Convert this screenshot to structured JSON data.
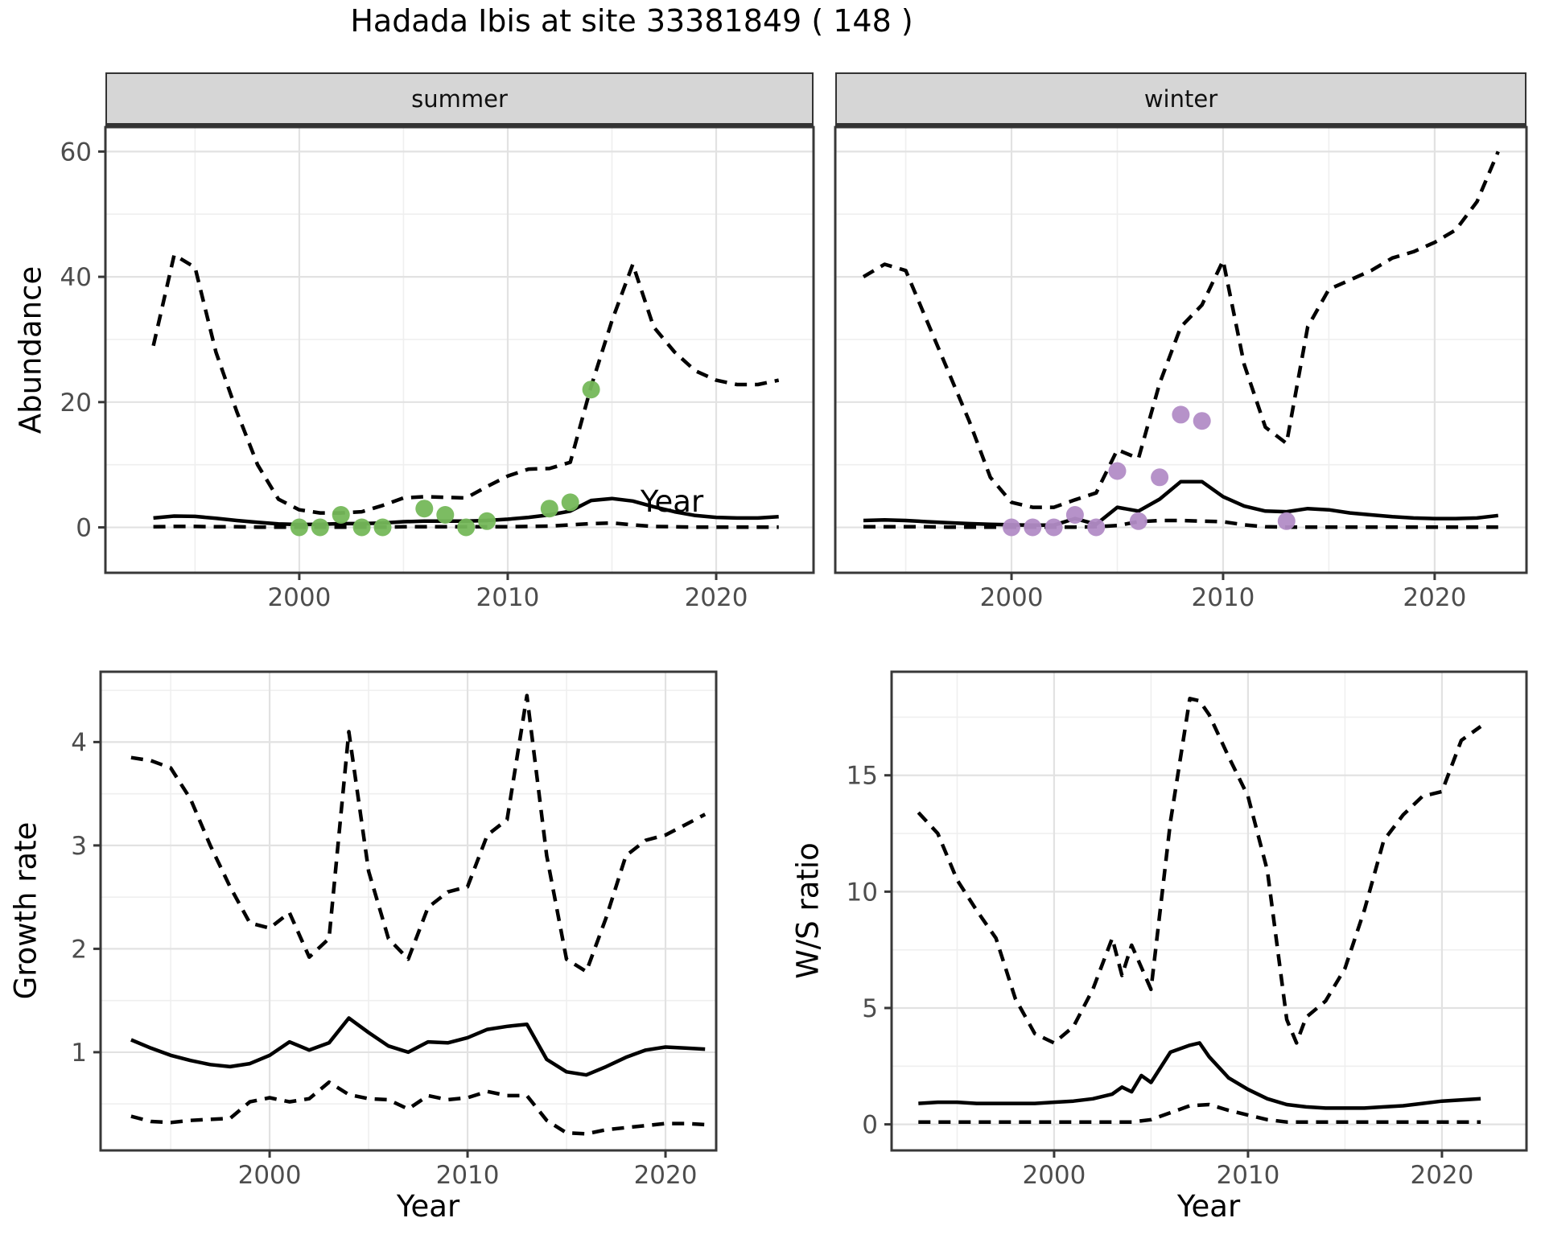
{
  "title": "Hadada Ibis at site 33381849 ( 148 )",
  "colors": {
    "summer_points": "#75b85a",
    "winter_points": "#b28cc6",
    "line": "#000000",
    "grid_major": "#e2e2e2",
    "grid_minor": "#efefef",
    "strip_bg": "#d6d6d6",
    "tick_text": "#4d4d4d",
    "border": "#383838"
  },
  "top_row": {
    "ylabel": "Abundance",
    "xlabel": "Year",
    "strips": [
      "summer",
      "winter"
    ]
  },
  "bottom_row": {
    "left_ylabel": "Growth rate",
    "right_ylabel": "W/S ratio",
    "xlabel": "Year"
  },
  "chart_data": [
    {
      "name": "abundance-summer",
      "type": "line",
      "facet": "summer",
      "xlabel": "Year",
      "ylabel": "Abundance",
      "xlim": [
        1990.7,
        2024.67
      ],
      "ylim": [
        -7.25,
        63.9
      ],
      "x_ticks": {
        "values": [
          2000,
          2010,
          2020
        ],
        "labels": [
          "2000",
          "2010",
          "2020"
        ]
      },
      "y_ticks": {
        "values": [
          0,
          20,
          40,
          60
        ],
        "labels": [
          "0",
          "20",
          "40",
          "60"
        ]
      },
      "x_minor": [
        1995,
        2005,
        2015
      ],
      "y_minor": [
        10,
        30,
        50
      ],
      "series": [
        {
          "name": "upper_ci",
          "style": "dashed",
          "x": [
            1993,
            1994,
            1995,
            1996,
            1997,
            1998,
            1999,
            2000,
            2001,
            2002,
            2003,
            2004,
            2005,
            2006,
            2007,
            2008,
            2009,
            2010,
            2011,
            2012,
            2013,
            2014,
            2015,
            2016,
            2017,
            2018,
            2019,
            2020,
            2021,
            2022,
            2023
          ],
          "v": [
            29,
            43.5,
            41.5,
            28,
            18.5,
            10,
            4.5,
            2.8,
            2.3,
            2.3,
            2.5,
            3.5,
            4.7,
            4.9,
            4.8,
            4.7,
            6.5,
            8.2,
            9.3,
            9.4,
            10.4,
            22.5,
            33,
            42,
            32,
            28,
            25,
            23.5,
            22.8,
            22.8,
            23.5
          ]
        },
        {
          "name": "median",
          "style": "solid",
          "x": [
            1993,
            1994,
            1995,
            1996,
            1997,
            1998,
            1999,
            2000,
            2001,
            2002,
            2003,
            2004,
            2005,
            2006,
            2007,
            2008,
            2009,
            2010,
            2011,
            2012,
            2013,
            2014,
            2015,
            2016,
            2017,
            2018,
            2019,
            2020,
            2021,
            2022,
            2023
          ],
          "v": [
            1.5,
            1.8,
            1.75,
            1.45,
            1.1,
            0.8,
            0.55,
            0.45,
            0.5,
            0.6,
            0.6,
            0.7,
            0.9,
            1.0,
            1.0,
            1.0,
            1.1,
            1.3,
            1.6,
            2.0,
            2.6,
            4.3,
            4.6,
            4.2,
            3.3,
            2.5,
            1.9,
            1.6,
            1.5,
            1.5,
            1.7
          ]
        },
        {
          "name": "lower_ci",
          "style": "dashed",
          "x": [
            1993,
            1994,
            1995,
            1996,
            1997,
            1998,
            1999,
            2000,
            2001,
            2002,
            2003,
            2004,
            2005,
            2006,
            2007,
            2008,
            2009,
            2010,
            2011,
            2012,
            2013,
            2014,
            2015,
            2016,
            2017,
            2018,
            2019,
            2020,
            2021,
            2022,
            2023
          ],
          "v": [
            0.1,
            0.15,
            0.15,
            0.1,
            0.1,
            0.05,
            0.05,
            0.05,
            0.05,
            0.05,
            0.05,
            0.05,
            0.1,
            0.1,
            0.1,
            0.1,
            0.1,
            0.1,
            0.15,
            0.2,
            0.4,
            0.6,
            0.7,
            0.4,
            0.15,
            0.1,
            0.05,
            0.05,
            0.05,
            0.05,
            0.05
          ]
        }
      ],
      "points": {
        "name": "observed-counts",
        "color_key": "summer_points",
        "x": [
          2000,
          2001,
          2002,
          2003,
          2004,
          2006,
          2007,
          2008,
          2009,
          2012,
          2013,
          2014
        ],
        "v": [
          0,
          0,
          2,
          0,
          0,
          3,
          2,
          0,
          1,
          3,
          4,
          22
        ]
      }
    },
    {
      "name": "abundance-winter",
      "type": "line",
      "facet": "winter",
      "xlabel": "Year",
      "ylabel": "Abundance",
      "xlim": [
        1991.67,
        2024.34
      ],
      "ylim": [
        -7.25,
        63.9
      ],
      "x_ticks": {
        "values": [
          2000,
          2010,
          2020
        ],
        "labels": [
          "2000",
          "2010",
          "2020"
        ]
      },
      "y_ticks": {
        "values": [
          0,
          20,
          40,
          60
        ],
        "labels": [
          "0",
          "20",
          "40",
          "60"
        ]
      },
      "x_minor": [
        1995,
        2005,
        2015
      ],
      "y_minor": [
        10,
        30,
        50
      ],
      "series": [
        {
          "name": "upper_ci",
          "style": "dashed",
          "x": [
            1993,
            1994,
            1995,
            1996,
            1997,
            1998,
            1999,
            2000,
            2001,
            2002,
            2003,
            2004,
            2005,
            2006,
            2007,
            2008,
            2009,
            2010,
            2011,
            2012,
            2013,
            2014,
            2015,
            2016,
            2017,
            2018,
            2019,
            2020,
            2021,
            2022,
            2023
          ],
          "v": [
            40,
            42,
            41,
            33,
            25,
            17,
            8,
            4,
            3.2,
            3.2,
            4.4,
            5.5,
            12.4,
            11,
            23,
            32,
            35.5,
            42.6,
            26,
            16,
            13.4,
            32,
            38,
            39.5,
            41,
            43,
            44,
            45.5,
            47.5,
            52,
            60
          ]
        },
        {
          "name": "median",
          "style": "solid",
          "x": [
            1993,
            1994,
            1995,
            1996,
            1997,
            1998,
            1999,
            2000,
            2001,
            2002,
            2003,
            2004,
            2005,
            2006,
            2007,
            2008,
            2009,
            2010,
            2011,
            2012,
            2013,
            2014,
            2015,
            2016,
            2017,
            2018,
            2019,
            2020,
            2021,
            2022,
            2023
          ],
          "v": [
            1.1,
            1.2,
            1.1,
            0.9,
            0.75,
            0.6,
            0.5,
            0.4,
            0.35,
            0.35,
            1.4,
            0.5,
            3.2,
            2.6,
            4.5,
            7.3,
            7.3,
            4.9,
            3.4,
            2.6,
            2.5,
            3.0,
            2.8,
            2.3,
            2.0,
            1.7,
            1.5,
            1.4,
            1.4,
            1.5,
            1.9
          ]
        },
        {
          "name": "lower_ci",
          "style": "dashed",
          "x": [
            1993,
            1994,
            1995,
            1996,
            1997,
            1998,
            1999,
            2000,
            2001,
            2002,
            2003,
            2004,
            2005,
            2006,
            2007,
            2008,
            2009,
            2010,
            2011,
            2012,
            2013,
            2014,
            2015,
            2016,
            2017,
            2018,
            2019,
            2020,
            2021,
            2022,
            2023
          ],
          "v": [
            0.1,
            0.1,
            0.1,
            0.1,
            0.05,
            0.05,
            0.05,
            0.05,
            0.05,
            0.05,
            0.05,
            0.1,
            0.3,
            0.9,
            1.1,
            1.1,
            1.0,
            0.9,
            0.4,
            0.1,
            0.05,
            0.05,
            0.05,
            0.05,
            0.05,
            0.05,
            0.05,
            0.05,
            0.05,
            0.05,
            0.05
          ]
        }
      ],
      "points": {
        "name": "observed-counts",
        "color_key": "winter_points",
        "x": [
          2000,
          2001,
          2002,
          2003,
          2004,
          2005,
          2006,
          2007,
          2008,
          2009,
          2013
        ],
        "v": [
          0,
          0,
          0,
          2,
          0,
          9,
          1,
          8,
          18,
          17,
          1
        ]
      }
    },
    {
      "name": "growth-rate",
      "type": "line",
      "facet": "",
      "xlabel": "Year",
      "ylabel": "Growth rate",
      "xlim": [
        1991.46,
        2022.56
      ],
      "ylim": [
        0.05,
        4.68
      ],
      "x_ticks": {
        "values": [
          2000,
          2010,
          2020
        ],
        "labels": [
          "2000",
          "2010",
          "2020"
        ]
      },
      "y_ticks": {
        "values": [
          1,
          2,
          3,
          4
        ],
        "labels": [
          "1",
          "2",
          "3",
          "4"
        ]
      },
      "x_minor": [
        1995,
        2005,
        2015
      ],
      "y_minor": [
        0.5,
        1.5,
        2.5,
        3.5,
        4.5
      ],
      "series": [
        {
          "name": "upper_ci",
          "style": "dashed",
          "x": [
            1993,
            1994,
            1995,
            1996,
            1997,
            1998,
            1999,
            2000,
            2001,
            2002,
            2003,
            2004,
            2005,
            2006,
            2007,
            2008,
            2009,
            2010,
            2011,
            2012,
            2013,
            2014,
            2015,
            2016,
            2017,
            2018,
            2019,
            2020,
            2021,
            2022
          ],
          "v": [
            3.85,
            3.82,
            3.75,
            3.45,
            3.0,
            2.6,
            2.25,
            2.2,
            2.35,
            1.92,
            2.1,
            4.1,
            2.75,
            2.1,
            1.9,
            2.4,
            2.55,
            2.6,
            3.1,
            3.25,
            4.45,
            2.9,
            1.9,
            1.78,
            2.3,
            2.9,
            3.05,
            3.1,
            3.2,
            3.3
          ]
        },
        {
          "name": "median",
          "style": "solid",
          "x": [
            1993,
            1994,
            1995,
            1996,
            1997,
            1998,
            1999,
            2000,
            2001,
            2002,
            2003,
            2004,
            2005,
            2006,
            2007,
            2008,
            2009,
            2010,
            2011,
            2012,
            2013,
            2014,
            2015,
            2016,
            2017,
            2018,
            2019,
            2020,
            2021,
            2022
          ],
          "v": [
            1.12,
            1.04,
            0.97,
            0.92,
            0.88,
            0.86,
            0.89,
            0.97,
            1.1,
            1.02,
            1.09,
            1.33,
            1.19,
            1.06,
            1.0,
            1.1,
            1.09,
            1.14,
            1.22,
            1.25,
            1.27,
            0.93,
            0.81,
            0.78,
            0.86,
            0.95,
            1.02,
            1.05,
            1.04,
            1.03
          ]
        },
        {
          "name": "lower_ci",
          "style": "dashed",
          "x": [
            1993,
            1994,
            1995,
            1996,
            1997,
            1998,
            1999,
            2000,
            2001,
            2002,
            2003,
            2004,
            2005,
            2006,
            2007,
            2008,
            2009,
            2010,
            2011,
            2012,
            2013,
            2014,
            2015,
            2016,
            2017,
            2018,
            2019,
            2020,
            2021,
            2022
          ],
          "v": [
            0.38,
            0.33,
            0.32,
            0.34,
            0.35,
            0.36,
            0.52,
            0.56,
            0.52,
            0.55,
            0.71,
            0.59,
            0.55,
            0.54,
            0.45,
            0.58,
            0.54,
            0.56,
            0.62,
            0.58,
            0.58,
            0.34,
            0.22,
            0.21,
            0.25,
            0.27,
            0.29,
            0.31,
            0.31,
            0.3
          ]
        }
      ],
      "points": null
    },
    {
      "name": "ws-ratio",
      "type": "line",
      "facet": "",
      "xlabel": "Year",
      "ylabel": "W/S ratio",
      "xlim": [
        1991.62,
        2024.36
      ],
      "ylim": [
        -1.12,
        19.45
      ],
      "x_ticks": {
        "values": [
          2000,
          2010,
          2020
        ],
        "labels": [
          "2000",
          "2010",
          "2020"
        ]
      },
      "y_ticks": {
        "values": [
          0,
          5,
          10,
          15
        ],
        "labels": [
          "0",
          "5",
          "10",
          "15"
        ]
      },
      "x_minor": [
        1995,
        2005,
        2015
      ],
      "y_minor": [
        2.5,
        7.5,
        12.5,
        17.5
      ],
      "series": [
        {
          "name": "upper_ci",
          "style": "dashed",
          "x": [
            1993,
            1994,
            1995,
            1996,
            1997,
            1998,
            1999,
            2000,
            2001,
            2002,
            2003,
            2003.5,
            2004,
            2005,
            2006,
            2007,
            2007.5,
            2008,
            2009,
            2010,
            2011,
            2012,
            2012.5,
            2013,
            2014,
            2015,
            2016,
            2017,
            2018,
            2019,
            2020,
            2021,
            2022
          ],
          "v": [
            13.4,
            12.5,
            10.5,
            9.2,
            8.0,
            5.4,
            3.9,
            3.5,
            4.2,
            5.8,
            8.0,
            6.4,
            7.7,
            5.8,
            13.0,
            18.3,
            18.2,
            17.6,
            15.8,
            14.1,
            10.9,
            4.5,
            3.5,
            4.6,
            5.3,
            6.7,
            9.2,
            12.2,
            13.3,
            14.1,
            14.3,
            16.5,
            17.1
          ]
        },
        {
          "name": "median",
          "style": "solid",
          "x": [
            1993,
            1994,
            1995,
            1996,
            1997,
            1998,
            1999,
            2000,
            2001,
            2002,
            2003,
            2003.5,
            2004,
            2004.5,
            2005,
            2006,
            2007,
            2007.5,
            2008,
            2009,
            2010,
            2011,
            2012,
            2013,
            2014,
            2015,
            2016,
            2017,
            2018,
            2019,
            2020,
            2021,
            2022
          ],
          "v": [
            0.9,
            0.95,
            0.95,
            0.9,
            0.9,
            0.9,
            0.9,
            0.95,
            1.0,
            1.1,
            1.3,
            1.6,
            1.4,
            2.1,
            1.8,
            3.1,
            3.4,
            3.5,
            2.9,
            2.0,
            1.5,
            1.1,
            0.85,
            0.75,
            0.7,
            0.7,
            0.7,
            0.75,
            0.8,
            0.9,
            1.0,
            1.05,
            1.1
          ]
        },
        {
          "name": "lower_ci",
          "style": "dashed",
          "x": [
            1993,
            1994,
            1995,
            1996,
            1997,
            1998,
            1999,
            2000,
            2001,
            2002,
            2003,
            2004,
            2005,
            2006,
            2007,
            2008,
            2009,
            2010,
            2011,
            2012,
            2013,
            2014,
            2015,
            2016,
            2017,
            2018,
            2019,
            2020,
            2021,
            2022
          ],
          "v": [
            0.1,
            0.1,
            0.1,
            0.1,
            0.1,
            0.1,
            0.1,
            0.1,
            0.1,
            0.1,
            0.1,
            0.1,
            0.2,
            0.5,
            0.8,
            0.85,
            0.6,
            0.4,
            0.2,
            0.1,
            0.1,
            0.1,
            0.1,
            0.1,
            0.1,
            0.1,
            0.1,
            0.1,
            0.1,
            0.1
          ]
        }
      ],
      "points": null
    }
  ]
}
